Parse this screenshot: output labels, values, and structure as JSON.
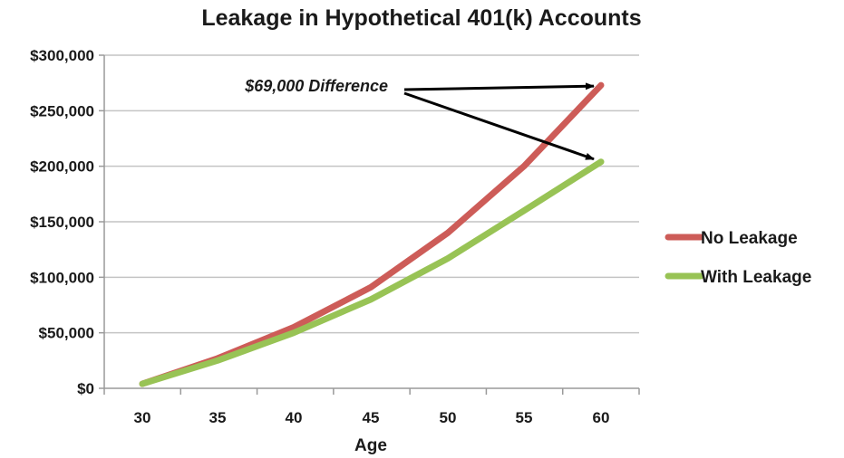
{
  "chart_data": {
    "type": "line",
    "title": "Leakage in Hypothetical 401(k) Accounts",
    "xlabel": "Age",
    "ylabel": "",
    "x": [
      30,
      35,
      40,
      45,
      50,
      55,
      60
    ],
    "x_tick_labels": [
      "30",
      "35",
      "40",
      "45",
      "50",
      "55",
      "60"
    ],
    "ylim": [
      0,
      300000
    ],
    "y_ticks": [
      0,
      50000,
      100000,
      150000,
      200000,
      250000,
      300000
    ],
    "y_tick_labels": [
      "$0",
      "$50,000",
      "$100,000",
      "$150,000",
      "$200,000",
      "$250,000",
      "$300,000"
    ],
    "grid": true,
    "legend_position": "right",
    "series": [
      {
        "name": "No Leakage",
        "color": "#cd5c58",
        "values": [
          4000,
          27000,
          55000,
          91000,
          140000,
          200000,
          273000
        ]
      },
      {
        "name": "With Leakage",
        "color": "#98c355",
        "values": [
          4000,
          25000,
          50000,
          80000,
          117000,
          160000,
          204000
        ]
      }
    ],
    "annotations": [
      {
        "text": "$69,000 Difference",
        "arrow_targets": [
          {
            "series": "No Leakage",
            "x": 60
          },
          {
            "series": "With Leakage",
            "x": 60
          }
        ]
      }
    ]
  }
}
